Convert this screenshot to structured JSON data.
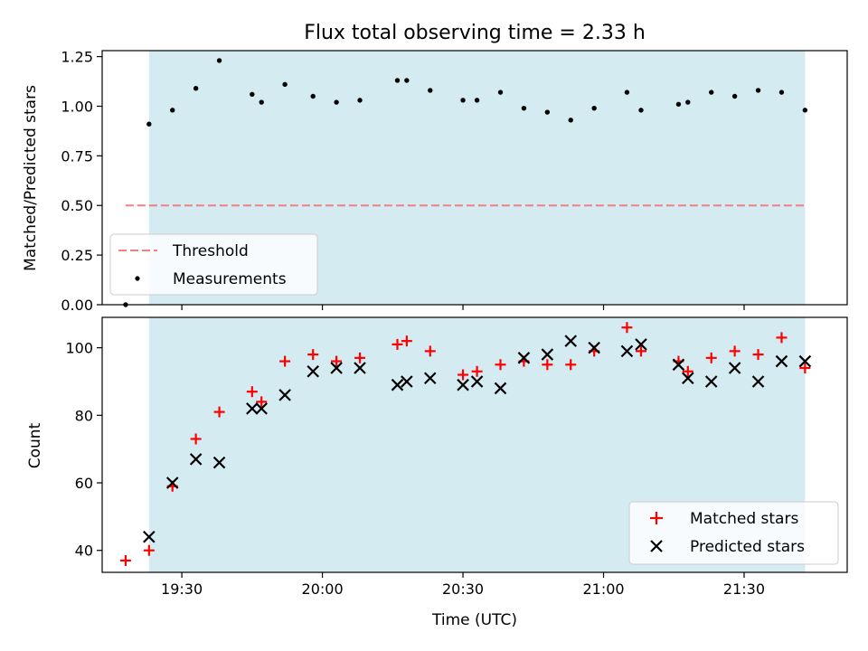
{
  "chart_data": [
    {
      "type": "scatter",
      "title": "Flux total observing time = 2.33 h",
      "xlabel": "",
      "ylabel": "Matched/Predicted stars",
      "ylim": [
        0,
        1.28
      ],
      "yticks": [
        "0.00",
        "0.25",
        "0.50",
        "0.75",
        "1.00",
        "1.25"
      ],
      "xlim": [
        "19:13",
        "21:52"
      ],
      "shaded_region": {
        "x_start": "19:23",
        "x_end": "21:43",
        "color": "#d4ebf2"
      },
      "threshold": {
        "name": "Threshold",
        "value": 0.5,
        "x_start": "19:18",
        "x_end": "21:43",
        "color": "#f28080",
        "style": "dashed"
      },
      "legend_position": "lower-left",
      "series": [
        {
          "name": "Measurements",
          "color": "#000000",
          "marker": "dot",
          "x": [
            "19:18",
            "19:23",
            "19:28",
            "19:33",
            "19:38",
            "19:45",
            "19:47",
            "19:52",
            "19:58",
            "20:03",
            "20:08",
            "20:16",
            "20:18",
            "20:23",
            "20:30",
            "20:33",
            "20:38",
            "20:43",
            "20:48",
            "20:53",
            "20:58",
            "21:05",
            "21:08",
            "21:16",
            "21:18",
            "21:23",
            "21:28",
            "21:33",
            "21:38",
            "21:43"
          ],
          "values": [
            0.0,
            0.91,
            0.98,
            1.09,
            1.23,
            1.06,
            1.02,
            1.11,
            1.05,
            1.02,
            1.03,
            1.13,
            1.13,
            1.08,
            1.03,
            1.03,
            1.07,
            0.99,
            0.97,
            0.93,
            0.99,
            1.07,
            0.98,
            1.01,
            1.02,
            1.07,
            1.05,
            1.08,
            1.07,
            0.98
          ]
        }
      ]
    },
    {
      "type": "scatter",
      "title": "",
      "xlabel": "Time (UTC)",
      "ylabel": "Count",
      "ylim": [
        33.5,
        109
      ],
      "yticks": [
        "40",
        "60",
        "80",
        "100"
      ],
      "xlim": [
        "19:13",
        "21:52"
      ],
      "xticks": [
        "19:30",
        "20:00",
        "20:30",
        "21:00",
        "21:30"
      ],
      "shaded_region": {
        "x_start": "19:23",
        "x_end": "21:43",
        "color": "#d4ebf2"
      },
      "legend_position": "lower-right",
      "series": [
        {
          "name": "Matched stars",
          "color": "#ff0000",
          "marker": "plus",
          "x": [
            "19:18",
            "19:23",
            "19:28",
            "19:33",
            "19:38",
            "19:45",
            "19:47",
            "19:52",
            "19:58",
            "20:03",
            "20:08",
            "20:16",
            "20:18",
            "20:23",
            "20:30",
            "20:33",
            "20:38",
            "20:43",
            "20:48",
            "20:53",
            "20:58",
            "21:05",
            "21:08",
            "21:16",
            "21:18",
            "21:23",
            "21:28",
            "21:33",
            "21:38",
            "21:43"
          ],
          "values": [
            37,
            40,
            59,
            73,
            81,
            87,
            84,
            96,
            98,
            96,
            97,
            101,
            102,
            99,
            92,
            93,
            95,
            96,
            95,
            95,
            99,
            106,
            99,
            96,
            93,
            97,
            99,
            98,
            103,
            94
          ]
        },
        {
          "name": "Predicted stars",
          "color": "#000000",
          "marker": "x",
          "x": [
            "19:23",
            "19:28",
            "19:33",
            "19:38",
            "19:45",
            "19:47",
            "19:52",
            "19:58",
            "20:03",
            "20:08",
            "20:16",
            "20:18",
            "20:23",
            "20:30",
            "20:33",
            "20:38",
            "20:43",
            "20:48",
            "20:53",
            "20:58",
            "21:05",
            "21:08",
            "21:16",
            "21:18",
            "21:23",
            "21:28",
            "21:33",
            "21:38",
            "21:43"
          ],
          "values": [
            44,
            60,
            67,
            66,
            82,
            82,
            86,
            93,
            94,
            94,
            89,
            90,
            91,
            89,
            90,
            88,
            97,
            98,
            102,
            100,
            99,
            101,
            95,
            91,
            90,
            94,
            90,
            96,
            96
          ]
        }
      ]
    }
  ]
}
